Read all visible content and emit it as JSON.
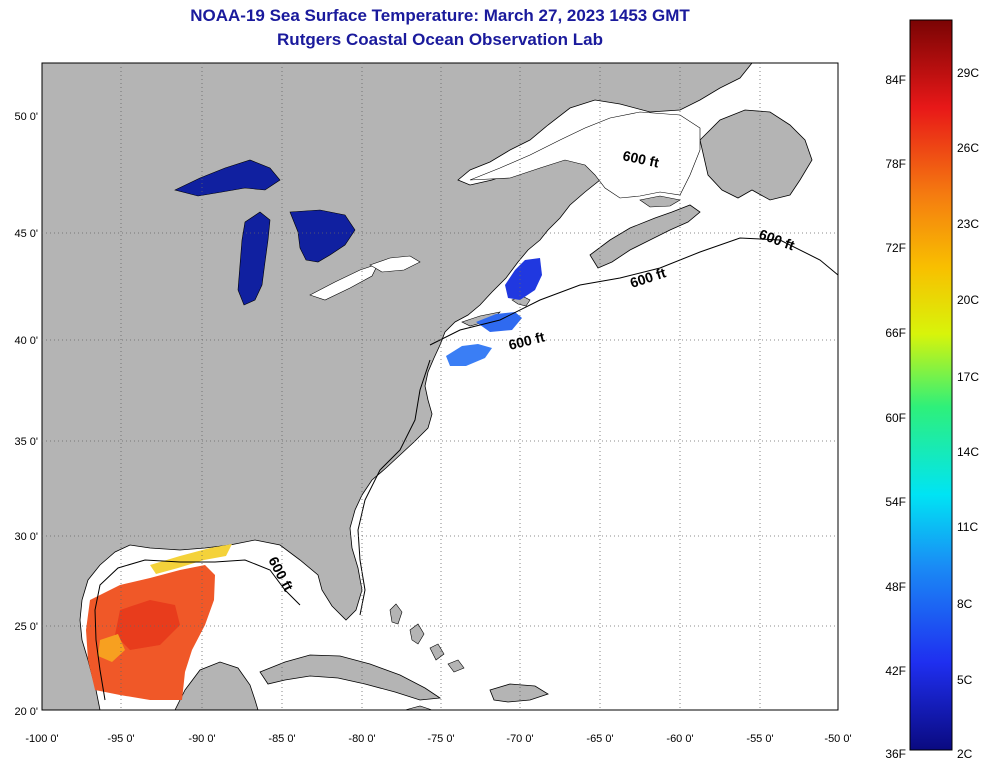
{
  "title": {
    "line1": "NOAA-19 Sea Surface Temperature:  March 27, 2023 1453 GMT",
    "line2": "Rutgers Coastal Ocean Observation Lab"
  },
  "axes": {
    "lat_labels": [
      "50 0'",
      "45 0'",
      "40 0'",
      "35 0'",
      "30 0'",
      "25 0'",
      "20 0'"
    ],
    "lon_labels": [
      "-100 0'",
      "-95 0'",
      "-90 0'",
      "-85 0'",
      "-80 0'",
      "-75 0'",
      "-70 0'",
      "-65 0'",
      "-60 0'",
      "-55 0'",
      "-50 0'"
    ]
  },
  "contour_label": "600 ft",
  "colorbar": {
    "fahrenheit": [
      "84F",
      "78F",
      "72F",
      "66F",
      "60F",
      "54F",
      "48F",
      "42F",
      "36F"
    ],
    "celsius": [
      "29C",
      "26C",
      "23C",
      "20C",
      "17C",
      "14C",
      "11C",
      "8C",
      "5C",
      "2C"
    ]
  },
  "colors": {
    "land": "#b4b4b4",
    "ocean": "#ffffff",
    "title": "#1a1a9c",
    "lake": "#1020a0",
    "gulf_warm": "#f05828"
  }
}
